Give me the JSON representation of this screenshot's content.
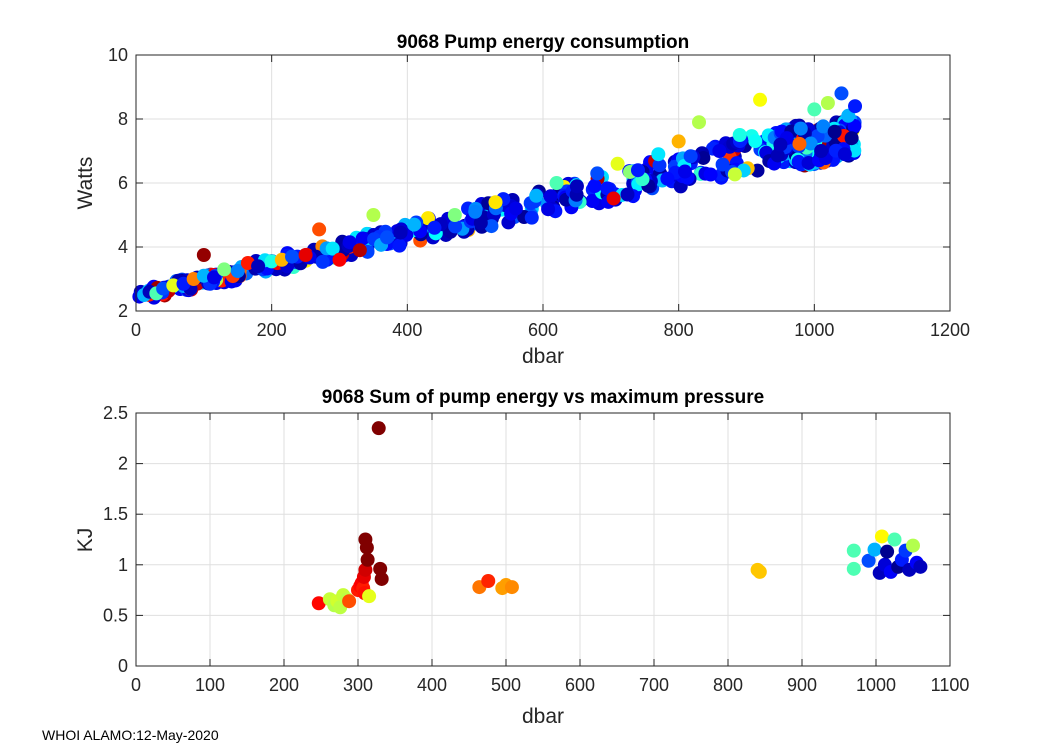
{
  "footer": "WHOI ALAMO:12-May-2020",
  "colors": {
    "grid": "#dfdfdf",
    "axis": "#262626",
    "jet": [
      "#00008f",
      "#0000ff",
      "#0080ff",
      "#00ffff",
      "#80ff80",
      "#ffff00",
      "#ff8000",
      "#ff0000",
      "#800000"
    ]
  },
  "chart_data": [
    {
      "id": "energy",
      "type": "scatter",
      "title": "9068 Pump energy consumption",
      "xlabel": "dbar",
      "ylabel": "Watts",
      "xlim": [
        0,
        1200
      ],
      "ylim": [
        2,
        10
      ],
      "xticks": [
        0,
        200,
        400,
        600,
        800,
        1000,
        1200
      ],
      "yticks": [
        2,
        4,
        6,
        8,
        10
      ],
      "grid": true,
      "trend": {
        "slope": 0.00485,
        "intercept": 2.45,
        "x_range": [
          0,
          1060
        ]
      },
      "points": [
        {
          "x": 5,
          "y": 2.45,
          "c": 0.1
        },
        {
          "x": 12,
          "y": 2.5,
          "c": 0.3
        },
        {
          "x": 20,
          "y": 2.6,
          "c": 0.05
        },
        {
          "x": 30,
          "y": 2.55,
          "c": 0.45
        },
        {
          "x": 40,
          "y": 2.7,
          "c": 0.2
        },
        {
          "x": 55,
          "y": 2.8,
          "c": 0.6
        },
        {
          "x": 70,
          "y": 2.85,
          "c": 0.15
        },
        {
          "x": 85,
          "y": 3.0,
          "c": 0.75
        },
        {
          "x": 100,
          "y": 3.75,
          "c": 0.98
        },
        {
          "x": 100,
          "y": 3.1,
          "c": 0.3
        },
        {
          "x": 115,
          "y": 3.05,
          "c": 0.1
        },
        {
          "x": 130,
          "y": 3.3,
          "c": 0.5
        },
        {
          "x": 150,
          "y": 3.25,
          "c": 0.25
        },
        {
          "x": 165,
          "y": 3.5,
          "c": 0.85
        },
        {
          "x": 180,
          "y": 3.4,
          "c": 0.05
        },
        {
          "x": 200,
          "y": 3.55,
          "c": 0.4
        },
        {
          "x": 215,
          "y": 3.6,
          "c": 0.7
        },
        {
          "x": 230,
          "y": 3.7,
          "c": 0.2
        },
        {
          "x": 250,
          "y": 3.75,
          "c": 0.9
        },
        {
          "x": 270,
          "y": 4.55,
          "c": 0.8
        },
        {
          "x": 290,
          "y": 3.95,
          "c": 0.35
        },
        {
          "x": 300,
          "y": 3.6,
          "c": 0.88
        },
        {
          "x": 315,
          "y": 4.15,
          "c": 0.1
        },
        {
          "x": 330,
          "y": 3.9,
          "c": 0.95
        },
        {
          "x": 350,
          "y": 5.0,
          "c": 0.55
        },
        {
          "x": 370,
          "y": 4.3,
          "c": 0.2
        },
        {
          "x": 390,
          "y": 4.45,
          "c": 0.05
        },
        {
          "x": 410,
          "y": 4.7,
          "c": 0.3
        },
        {
          "x": 440,
          "y": 4.6,
          "c": 0.15
        },
        {
          "x": 470,
          "y": 5.0,
          "c": 0.5
        },
        {
          "x": 500,
          "y": 5.1,
          "c": 0.25
        },
        {
          "x": 530,
          "y": 5.4,
          "c": 0.65
        },
        {
          "x": 560,
          "y": 5.2,
          "c": 0.1
        },
        {
          "x": 590,
          "y": 5.6,
          "c": 0.3
        },
        {
          "x": 620,
          "y": 6.0,
          "c": 0.45
        },
        {
          "x": 650,
          "y": 5.9,
          "c": 0.05
        },
        {
          "x": 680,
          "y": 6.3,
          "c": 0.2
        },
        {
          "x": 710,
          "y": 6.6,
          "c": 0.6
        },
        {
          "x": 740,
          "y": 6.4,
          "c": 0.15
        },
        {
          "x": 770,
          "y": 6.9,
          "c": 0.35
        },
        {
          "x": 800,
          "y": 7.3,
          "c": 0.7
        },
        {
          "x": 830,
          "y": 7.9,
          "c": 0.55
        },
        {
          "x": 860,
          "y": 7.0,
          "c": 0.1
        },
        {
          "x": 890,
          "y": 7.5,
          "c": 0.4
        },
        {
          "x": 920,
          "y": 8.6,
          "c": 0.62
        },
        {
          "x": 950,
          "y": 7.2,
          "c": 0.05
        },
        {
          "x": 980,
          "y": 7.7,
          "c": 0.25
        },
        {
          "x": 1000,
          "y": 8.3,
          "c": 0.45
        },
        {
          "x": 1010,
          "y": 7.0,
          "c": 0.05
        },
        {
          "x": 1020,
          "y": 8.5,
          "c": 0.55
        },
        {
          "x": 1030,
          "y": 7.6,
          "c": 0.0
        },
        {
          "x": 1040,
          "y": 8.8,
          "c": 0.2
        },
        {
          "x": 1045,
          "y": 6.9,
          "c": 0.08
        },
        {
          "x": 1050,
          "y": 8.1,
          "c": 0.3
        },
        {
          "x": 1055,
          "y": 7.4,
          "c": 0.0
        },
        {
          "x": 1060,
          "y": 8.4,
          "c": 0.15
        }
      ]
    },
    {
      "id": "sum",
      "type": "scatter",
      "title": "9068 Sum of pump energy vs maximum pressure",
      "xlabel": "dbar",
      "ylabel": "KJ",
      "xlim": [
        0,
        1100
      ],
      "ylim": [
        0,
        2.5
      ],
      "xticks": [
        0,
        100,
        200,
        300,
        400,
        500,
        600,
        700,
        800,
        900,
        1000,
        1100
      ],
      "yticks": [
        0,
        0.5,
        1,
        1.5,
        2,
        2.5
      ],
      "ytick_labels": [
        "0",
        "0.5",
        "1",
        "1.5",
        "2",
        "2.5"
      ],
      "grid": true,
      "points": [
        {
          "x": 247,
          "y": 0.62,
          "c": 0.87
        },
        {
          "x": 262,
          "y": 0.66,
          "c": 0.57
        },
        {
          "x": 268,
          "y": 0.6,
          "c": 0.55
        },
        {
          "x": 272,
          "y": 0.64,
          "c": 0.58
        },
        {
          "x": 276,
          "y": 0.58,
          "c": 0.56
        },
        {
          "x": 280,
          "y": 0.7,
          "c": 0.57
        },
        {
          "x": 285,
          "y": 0.66,
          "c": 0.56
        },
        {
          "x": 288,
          "y": 0.64,
          "c": 0.8
        },
        {
          "x": 300,
          "y": 0.75,
          "c": 0.85
        },
        {
          "x": 303,
          "y": 0.79,
          "c": 0.87
        },
        {
          "x": 305,
          "y": 0.82,
          "c": 0.88
        },
        {
          "x": 307,
          "y": 0.77,
          "c": 0.85
        },
        {
          "x": 308,
          "y": 0.88,
          "c": 0.9
        },
        {
          "x": 309,
          "y": 0.72,
          "c": 0.86
        },
        {
          "x": 310,
          "y": 0.95,
          "c": 0.92
        },
        {
          "x": 310,
          "y": 1.25,
          "c": 1.0
        },
        {
          "x": 312,
          "y": 1.17,
          "c": 1.0
        },
        {
          "x": 313,
          "y": 1.05,
          "c": 1.0
        },
        {
          "x": 315,
          "y": 0.69,
          "c": 0.6
        },
        {
          "x": 328,
          "y": 2.35,
          "c": 1.0
        },
        {
          "x": 330,
          "y": 0.96,
          "c": 1.0
        },
        {
          "x": 332,
          "y": 0.86,
          "c": 1.0
        },
        {
          "x": 464,
          "y": 0.78,
          "c": 0.76
        },
        {
          "x": 476,
          "y": 0.84,
          "c": 0.84
        },
        {
          "x": 495,
          "y": 0.77,
          "c": 0.72
        },
        {
          "x": 500,
          "y": 0.8,
          "c": 0.72
        },
        {
          "x": 508,
          "y": 0.78,
          "c": 0.74
        },
        {
          "x": 840,
          "y": 0.95,
          "c": 0.68
        },
        {
          "x": 843,
          "y": 0.93,
          "c": 0.68
        },
        {
          "x": 970,
          "y": 0.96,
          "c": 0.45
        },
        {
          "x": 970,
          "y": 1.14,
          "c": 0.45
        },
        {
          "x": 990,
          "y": 1.04,
          "c": 0.2
        },
        {
          "x": 998,
          "y": 1.15,
          "c": 0.3
        },
        {
          "x": 1005,
          "y": 0.92,
          "c": 0.05
        },
        {
          "x": 1008,
          "y": 1.28,
          "c": 0.63
        },
        {
          "x": 1012,
          "y": 1.0,
          "c": 0.08
        },
        {
          "x": 1015,
          "y": 1.13,
          "c": 0.0
        },
        {
          "x": 1020,
          "y": 0.93,
          "c": 0.12
        },
        {
          "x": 1025,
          "y": 1.25,
          "c": 0.45
        },
        {
          "x": 1030,
          "y": 0.98,
          "c": 0.0
        },
        {
          "x": 1035,
          "y": 1.05,
          "c": 0.15
        },
        {
          "x": 1040,
          "y": 1.14,
          "c": 0.18
        },
        {
          "x": 1045,
          "y": 0.95,
          "c": 0.05
        },
        {
          "x": 1050,
          "y": 1.19,
          "c": 0.55
        },
        {
          "x": 1055,
          "y": 1.02,
          "c": 0.12
        },
        {
          "x": 1060,
          "y": 0.98,
          "c": 0.05
        }
      ]
    }
  ]
}
